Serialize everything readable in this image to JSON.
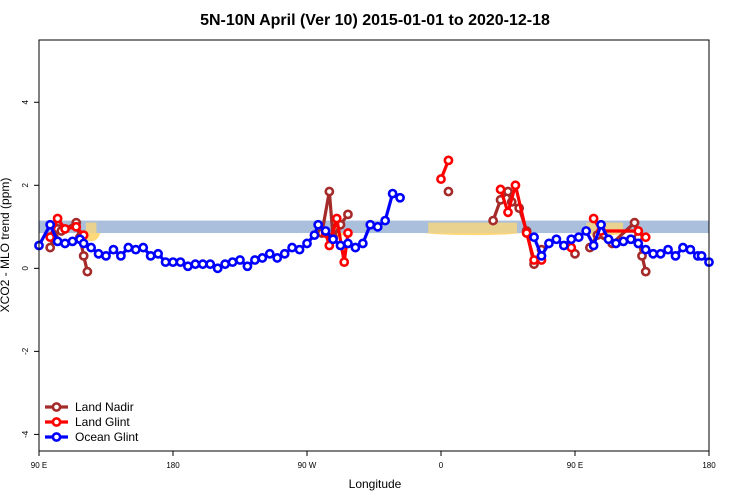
{
  "chart_data": {
    "type": "line",
    "title": "5N-10N April (Ver 10)   2015-01-01 to 2020-12-18",
    "xlabel": "Longitude",
    "ylabel": "XCO2 - MLO trend (ppm)",
    "xlim": [
      90,
      270
    ],
    "ylim": [
      -4.4,
      5.5
    ],
    "x_ticks": [
      {
        "value": 90,
        "label": "90 E"
      },
      {
        "value": 126,
        "label": "180"
      },
      {
        "value": 162,
        "label": "90 W"
      },
      {
        "value": 198,
        "label": "0"
      },
      {
        "value": 234,
        "label": "90 E"
      },
      {
        "value": 270,
        "label": "180"
      }
    ],
    "y_ticks": [
      {
        "value": -4,
        "label": "-4"
      },
      {
        "value": -2,
        "label": "-2"
      },
      {
        "value": 0,
        "label": "0"
      },
      {
        "value": 2,
        "label": "2"
      },
      {
        "value": 4,
        "label": "4"
      }
    ],
    "reference_band": {
      "low": 0.85,
      "high": 1.15,
      "color": "#a9bfdc"
    },
    "yellow_fill_ranges": [
      {
        "x0": 101.5,
        "x1": 106.5,
        "low": 0.65
      },
      {
        "x0": 168.0,
        "x1": 172.0,
        "low": 0.75
      },
      {
        "x0": 193.5,
        "x1": 219.5,
        "low": 0.8
      },
      {
        "x0": 232.5,
        "x1": 234.5,
        "low": 0.9
      },
      {
        "x0": 236.0,
        "x1": 248.0,
        "low": 0.8
      }
    ],
    "yellow_color": "#ffd877",
    "legend": {
      "position": "bottom-left"
    },
    "series": [
      {
        "name": "Land Nadir",
        "color": "#a52a2a",
        "segments": [
          [
            [
              93,
              0.5
            ],
            [
              94,
              0.75
            ],
            [
              95,
              0.95
            ],
            [
              96,
              0.9
            ],
            [
              100,
              1.1
            ],
            [
              101,
              0.75
            ],
            [
              102,
              0.3
            ],
            [
              103,
              -0.08
            ]
          ],
          [
            [
              166,
              0.85
            ],
            [
              168,
              1.85
            ],
            [
              169,
              0.75
            ],
            [
              171,
              1.05
            ],
            [
              173,
              1.3
            ]
          ],
          [
            [
              200,
              1.85
            ]
          ],
          [
            [
              212,
              1.15
            ],
            [
              214,
              1.65
            ],
            [
              216,
              1.85
            ],
            [
              217,
              1.6
            ],
            [
              219,
              1.45
            ],
            [
              221,
              0.9
            ],
            [
              223,
              0.1
            ],
            [
              225,
              0.45
            ]
          ],
          [
            [
              234,
              0.35
            ]
          ],
          [
            [
              238,
              0.5
            ],
            [
              240,
              0.8
            ],
            [
              244,
              0.6
            ],
            [
              250,
              1.1
            ],
            [
              251,
              0.75
            ],
            [
              252,
              0.3
            ],
            [
              253,
              -0.08
            ]
          ]
        ]
      },
      {
        "name": "Land Glint",
        "color": "#ff0000",
        "segments": [
          [
            [
              93,
              0.75
            ],
            [
              95,
              1.2
            ],
            [
              97,
              0.95
            ],
            [
              100,
              1.0
            ],
            [
              102,
              0.8
            ]
          ],
          [
            [
              167,
              0.85
            ],
            [
              168,
              0.55
            ],
            [
              170,
              1.2
            ],
            [
              172,
              0.15
            ],
            [
              173,
              0.85
            ]
          ],
          [
            [
              198,
              2.15
            ],
            [
              200,
              2.6
            ]
          ],
          [
            [
              214,
              1.9
            ],
            [
              216,
              1.35
            ],
            [
              218,
              2.0
            ],
            [
              221,
              0.85
            ],
            [
              223,
              0.2
            ],
            [
              225,
              0.2
            ]
          ],
          [
            [
              233,
              0.5
            ]
          ],
          [
            [
              239,
              1.2
            ],
            [
              241,
              0.9
            ],
            [
              251,
              0.9
            ],
            [
              253,
              0.75
            ]
          ]
        ]
      },
      {
        "name": "Ocean Glint",
        "color": "#0000ff",
        "segments": [
          [
            [
              90,
              0.55
            ],
            [
              93,
              1.05
            ],
            [
              95,
              0.65
            ],
            [
              97,
              0.6
            ],
            [
              99,
              0.65
            ],
            [
              101,
              0.7
            ],
            [
              102,
              0.6
            ],
            [
              104,
              0.5
            ],
            [
              106,
              0.35
            ],
            [
              108,
              0.3
            ],
            [
              110,
              0.45
            ],
            [
              112,
              0.3
            ],
            [
              114,
              0.5
            ],
            [
              116,
              0.45
            ],
            [
              118,
              0.5
            ],
            [
              120,
              0.3
            ],
            [
              122,
              0.35
            ],
            [
              124,
              0.15
            ],
            [
              126,
              0.15
            ],
            [
              128,
              0.15
            ],
            [
              130,
              0.05
            ],
            [
              132,
              0.1
            ],
            [
              134,
              0.1
            ],
            [
              136,
              0.1
            ],
            [
              138,
              0.0
            ],
            [
              140,
              0.1
            ],
            [
              142,
              0.15
            ],
            [
              144,
              0.2
            ],
            [
              146,
              0.05
            ],
            [
              148,
              0.2
            ],
            [
              150,
              0.25
            ],
            [
              152,
              0.35
            ],
            [
              154,
              0.25
            ],
            [
              156,
              0.35
            ],
            [
              158,
              0.5
            ],
            [
              160,
              0.45
            ],
            [
              162,
              0.6
            ],
            [
              164,
              0.8
            ],
            [
              165,
              1.05
            ],
            [
              167,
              0.9
            ],
            [
              169,
              0.7
            ],
            [
              171,
              0.55
            ],
            [
              173,
              0.6
            ],
            [
              175,
              0.5
            ],
            [
              177,
              0.6
            ],
            [
              179,
              1.05
            ],
            [
              181,
              1.0
            ],
            [
              183,
              1.15
            ],
            [
              185,
              1.8
            ],
            [
              187,
              1.7
            ]
          ],
          [
            [
              223,
              0.75
            ],
            [
              225,
              0.3
            ],
            [
              227,
              0.6
            ],
            [
              229,
              0.7
            ],
            [
              231,
              0.55
            ],
            [
              233,
              0.7
            ],
            [
              235,
              0.75
            ],
            [
              237,
              0.9
            ],
            [
              239,
              0.55
            ],
            [
              241,
              1.05
            ],
            [
              243,
              0.7
            ],
            [
              245,
              0.6
            ],
            [
              247,
              0.65
            ],
            [
              249,
              0.7
            ],
            [
              251,
              0.6
            ],
            [
              253,
              0.45
            ],
            [
              255,
              0.35
            ],
            [
              257,
              0.35
            ],
            [
              259,
              0.45
            ],
            [
              261,
              0.3
            ],
            [
              263,
              0.5
            ],
            [
              265,
              0.45
            ],
            [
              267,
              0.3
            ],
            [
              268,
              0.3
            ],
            [
              270,
              0.15
            ]
          ]
        ]
      }
    ]
  }
}
